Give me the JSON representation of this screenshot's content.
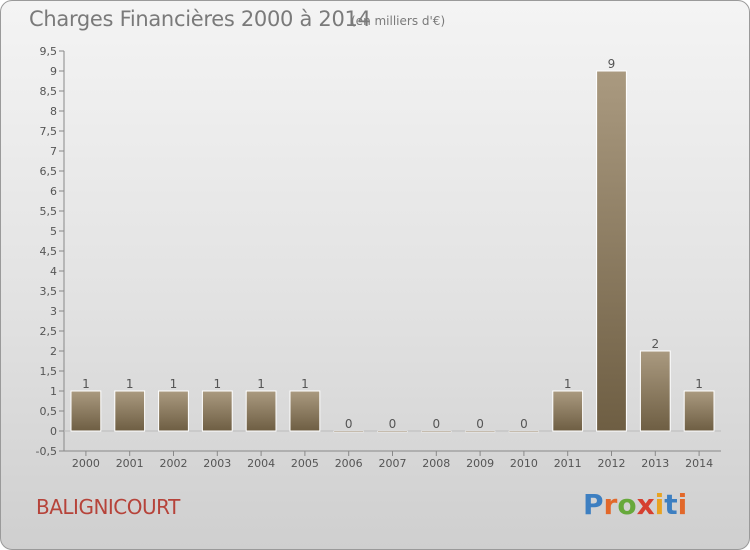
{
  "header": {
    "title": "Charges Financières 2000 à 2014",
    "subtitle": "(en milliers d'€)"
  },
  "footer": {
    "commune": "BALIGNICOURT",
    "logo_letters": [
      "P",
      "r",
      "o",
      "x",
      "i",
      "t",
      "i"
    ],
    "logo_colors": [
      "#3d7fc1",
      "#e2682a",
      "#67a93b",
      "#d63f2f",
      "#e8a321",
      "#3d7fc1",
      "#e2682a"
    ]
  },
  "chart_data": {
    "type": "bar",
    "categories": [
      "2000",
      "2001",
      "2002",
      "2003",
      "2004",
      "2005",
      "2006",
      "2007",
      "2008",
      "2009",
      "2010",
      "2011",
      "2012",
      "2013",
      "2014"
    ],
    "values": [
      1,
      1,
      1,
      1,
      1,
      1,
      0,
      0,
      0,
      0,
      0,
      1,
      9,
      2,
      1
    ],
    "data_labels": [
      "1",
      "1",
      "1",
      "1",
      "1",
      "1",
      "0",
      "0",
      "0",
      "0",
      "0",
      "1",
      "9",
      "2",
      "1"
    ],
    "title": "Charges Financières 2000 à 2014",
    "xlabel": "",
    "ylabel": "",
    "ylim": [
      -0.5,
      9.5
    ],
    "yticks": [
      -0.5,
      0,
      0.5,
      1,
      1.5,
      2,
      2.5,
      3,
      3.5,
      4,
      4.5,
      5,
      5.5,
      6,
      6.5,
      7,
      7.5,
      8,
      8.5,
      9,
      9.5
    ],
    "ytick_labels": [
      "-0,5",
      "0",
      "0,5",
      "1",
      "1,5",
      "2",
      "2,5",
      "3",
      "3,5",
      "4",
      "4,5",
      "5",
      "5,5",
      "6",
      "6,5",
      "7",
      "7,5",
      "8",
      "8,5",
      "9",
      "9,5"
    ],
    "grid": false,
    "bar_color": "#8c7a5e"
  }
}
